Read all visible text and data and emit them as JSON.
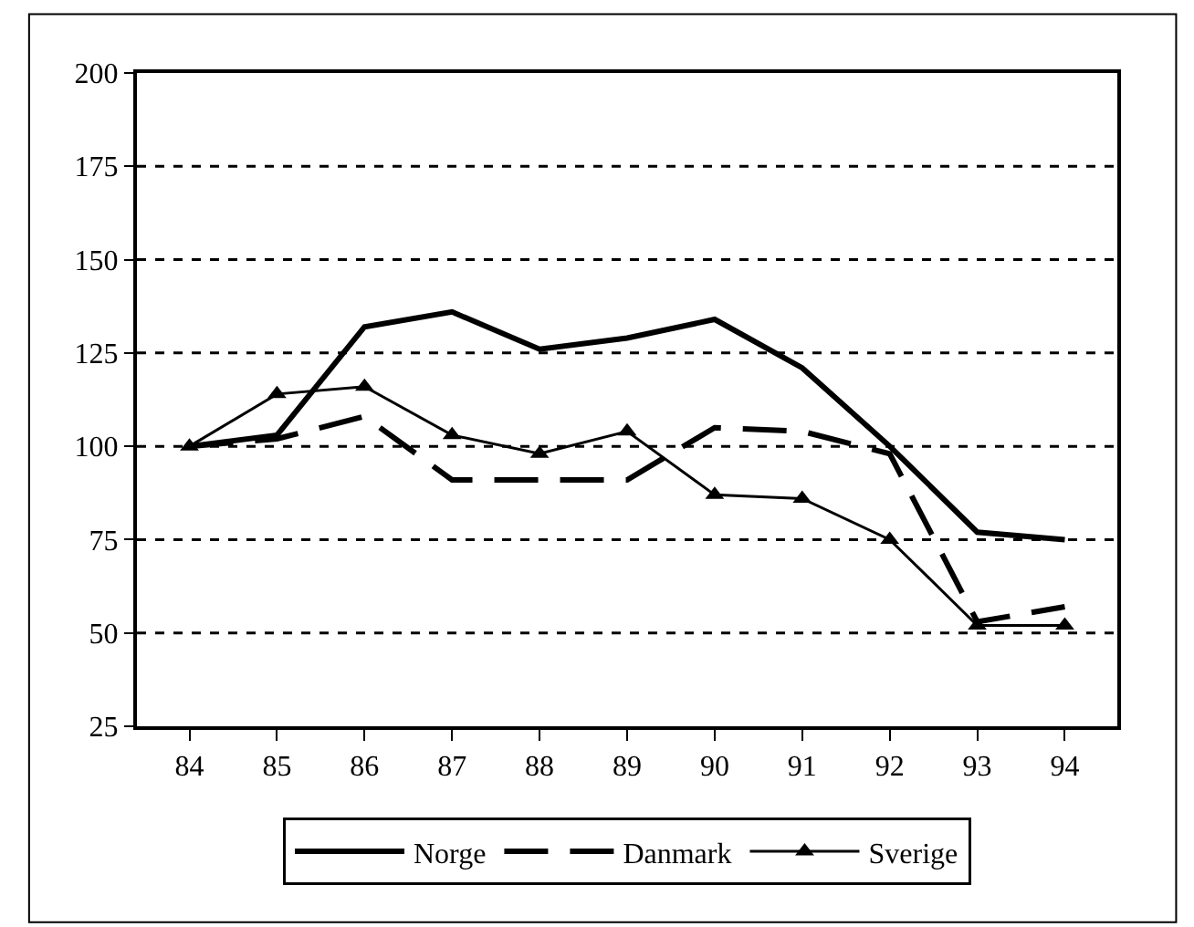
{
  "chart_data": {
    "type": "line",
    "categories": [
      "84",
      "85",
      "86",
      "87",
      "88",
      "89",
      "90",
      "91",
      "92",
      "93",
      "94"
    ],
    "series": [
      {
        "name": "Norge",
        "color": "#000000",
        "line_style": "solid",
        "marker": "none",
        "values": [
          100,
          103,
          132,
          136,
          126,
          129,
          134,
          121,
          100,
          77,
          75
        ]
      },
      {
        "name": "Danmark",
        "color": "#000000",
        "line_style": "dashed",
        "marker": "none",
        "values": [
          100,
          102,
          108,
          91,
          91,
          91,
          105,
          104,
          98,
          53,
          57
        ]
      },
      {
        "name": "Sverige",
        "color": "#000000",
        "line_style": "solid",
        "marker": "triangle",
        "values": [
          100,
          114,
          116,
          103,
          98,
          104,
          87,
          86,
          75,
          52,
          52
        ]
      }
    ],
    "ylim": [
      25,
      200
    ],
    "yticks": [
      25,
      50,
      75,
      100,
      125,
      150,
      175,
      200
    ],
    "grid": "y",
    "legend": "bottom"
  }
}
